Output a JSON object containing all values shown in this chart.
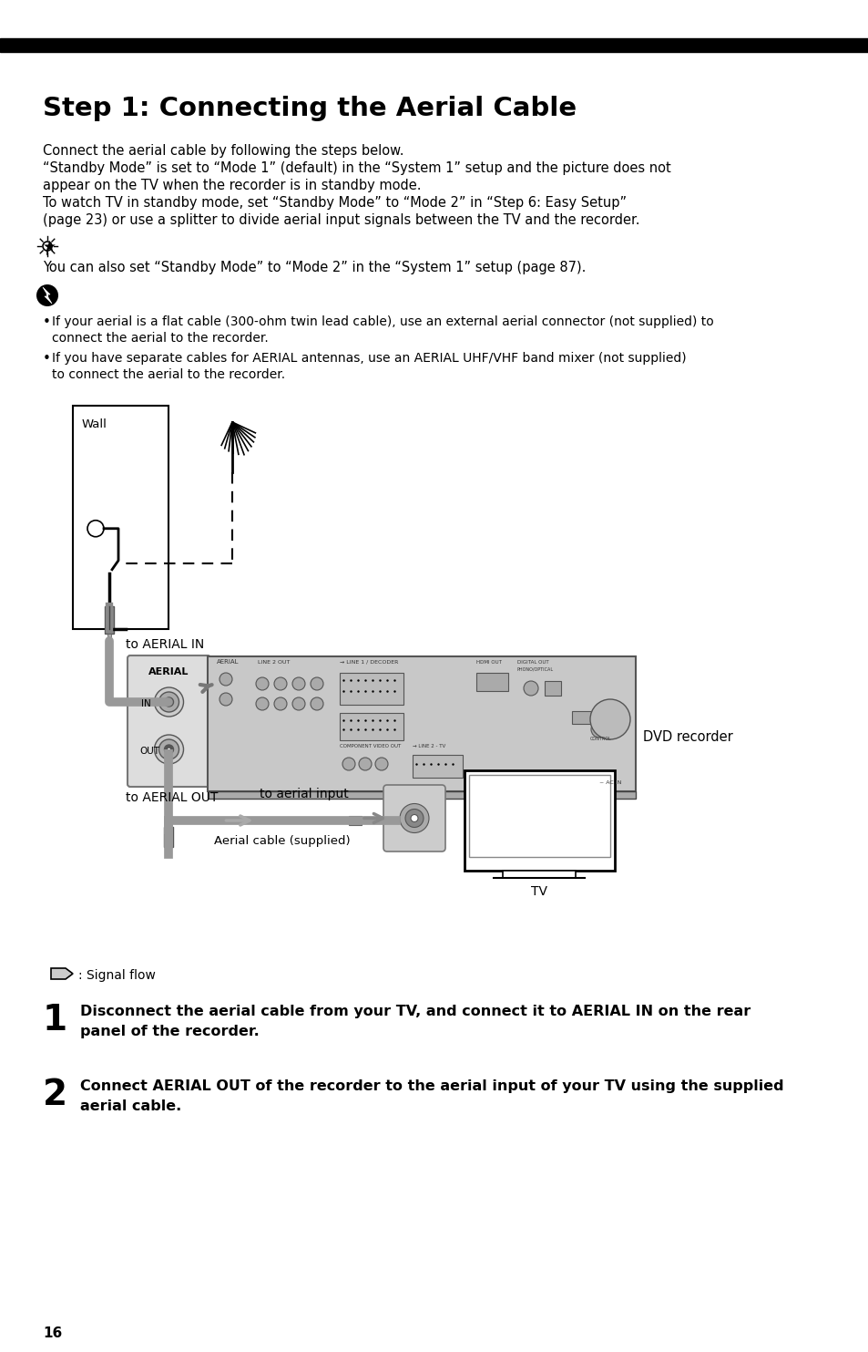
{
  "title": "Step 1: Connecting the Aerial Cable",
  "page_number": "16",
  "background_color": "#ffffff",
  "text_color": "#000000",
  "body_lines": [
    "Connect the aerial cable by following the steps below.",
    "“Standby Mode” is set to “Mode 1” (default) in the “System 1” setup and the picture does not",
    "appear on the TV when the recorder is in standby mode.",
    "To watch TV in standby mode, set “Standby Mode” to “Mode 2” in “Step 6: Easy Setup”",
    "(page 23) or use a splitter to divide aerial input signals between the TV and the recorder."
  ],
  "tip_text": "You can also set “Standby Mode” to “Mode 2” in the “System 1” setup (page 87).",
  "bullet1_line1": "If your aerial is a flat cable (300-ohm twin lead cable), use an external aerial connector (not supplied) to",
  "bullet1_line2": "connect the aerial to the recorder.",
  "bullet2_line1": "If you have separate cables for AERIAL antennas, use an AERIAL UHF/VHF band mixer (not supplied)",
  "bullet2_line2": "to connect the aerial to the recorder.",
  "steps": [
    {
      "num": "1",
      "line1": "Disconnect the aerial cable from your TV, and connect it to AERIAL IN on the rear",
      "line2": "panel of the recorder."
    },
    {
      "num": "2",
      "line1": "Connect AERIAL OUT of the recorder to the aerial input of your TV using the supplied",
      "line2": "aerial cable."
    }
  ],
  "diagram_labels": {
    "wall": "Wall",
    "to_aerial_in": "to AERIAL IN",
    "to_aerial_out": "to AERIAL OUT",
    "to_aerial_input": "to aerial input",
    "aerial_cable": "Aerial cable (supplied)",
    "dvd_recorder": "DVD recorder",
    "tv": "TV",
    "signal_flow": ": Signal flow",
    "aerial": "AERIAL",
    "in_label": "IN",
    "out_label": "OUT"
  }
}
